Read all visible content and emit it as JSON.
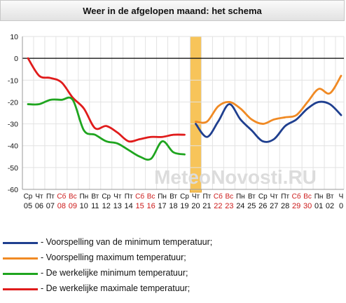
{
  "title": "Weer in de afgelopen maand: het schema",
  "watermark": "MeteoNovosti.RU",
  "colors": {
    "forecast_min": "#1f3f8f",
    "forecast_max": "#f08a24",
    "actual_min": "#1fa51f",
    "actual_max": "#e01b1b",
    "weekend_text": "#cc1a1a",
    "today_band": "#f7c45a"
  },
  "legend": [
    {
      "label": "- Voorspelling van de minimum temperatuur;",
      "color": "#1f3f8f"
    },
    {
      "label": "- Voorspelling maximum temperatuur;",
      "color": "#f08a24"
    },
    {
      "label": "- De werkelijke minimum temperatuur;",
      "color": "#1fa51f"
    },
    {
      "label": "- De werkelijke maximale temperatuur;",
      "color": "#e01b1b"
    }
  ],
  "chart_data": {
    "type": "line",
    "ylim": [
      -60,
      10
    ],
    "yticks": [
      10,
      0,
      -10,
      -20,
      -30,
      -40,
      -50,
      -60
    ],
    "grid": true,
    "highlight_day_index": 15,
    "days": [
      {
        "name": "Ср",
        "num": "05",
        "weekend": false
      },
      {
        "name": "Чт",
        "num": "06",
        "weekend": false
      },
      {
        "name": "Пт",
        "num": "07",
        "weekend": false
      },
      {
        "name": "Сб",
        "num": "08",
        "weekend": true
      },
      {
        "name": "Вс",
        "num": "09",
        "weekend": true
      },
      {
        "name": "Пн",
        "num": "10",
        "weekend": false
      },
      {
        "name": "Вт",
        "num": "11",
        "weekend": false
      },
      {
        "name": "Ср",
        "num": "12",
        "weekend": false
      },
      {
        "name": "Чт",
        "num": "13",
        "weekend": false
      },
      {
        "name": "Пт",
        "num": "14",
        "weekend": false
      },
      {
        "name": "Сб",
        "num": "15",
        "weekend": true
      },
      {
        "name": "Вс",
        "num": "16",
        "weekend": true
      },
      {
        "name": "Пн",
        "num": "17",
        "weekend": false
      },
      {
        "name": "Вт",
        "num": "18",
        "weekend": false
      },
      {
        "name": "Ср",
        "num": "19",
        "weekend": false
      },
      {
        "name": "Чт",
        "num": "20",
        "weekend": false
      },
      {
        "name": "Пт",
        "num": "21",
        "weekend": false
      },
      {
        "name": "Сб",
        "num": "22",
        "weekend": true
      },
      {
        "name": "Вс",
        "num": "23",
        "weekend": true
      },
      {
        "name": "Пн",
        "num": "24",
        "weekend": false
      },
      {
        "name": "Вт",
        "num": "25",
        "weekend": false
      },
      {
        "name": "Ср",
        "num": "26",
        "weekend": false
      },
      {
        "name": "Чт",
        "num": "27",
        "weekend": false
      },
      {
        "name": "Пт",
        "num": "28",
        "weekend": false
      },
      {
        "name": "Сб",
        "num": "29",
        "weekend": true
      },
      {
        "name": "Вс",
        "num": "30",
        "weekend": true
      },
      {
        "name": "Пн",
        "num": "01",
        "weekend": false
      },
      {
        "name": "Вт",
        "num": "02",
        "weekend": false
      },
      {
        "name": "Ч",
        "num": "0",
        "weekend": false
      }
    ],
    "series": [
      {
        "key": "actual_max",
        "color": "#e01b1b",
        "values": [
          0,
          -8,
          -9,
          -11,
          -18,
          -23,
          -32,
          -31,
          -34,
          -38,
          -37,
          -36,
          -36,
          -35,
          -35,
          null,
          null,
          null,
          null,
          null,
          null,
          null,
          null,
          null,
          null,
          null,
          null,
          null,
          null
        ]
      },
      {
        "key": "actual_min",
        "color": "#1fa51f",
        "values": [
          -21,
          -21,
          -19,
          -19,
          -19,
          -33,
          -35,
          -38,
          -39,
          -42,
          -45,
          -46,
          -38,
          -43,
          -44,
          null,
          null,
          null,
          null,
          null,
          null,
          null,
          null,
          null,
          null,
          null,
          null,
          null,
          null
        ]
      },
      {
        "key": "forecast_max",
        "color": "#f08a24",
        "values": [
          null,
          null,
          null,
          null,
          null,
          null,
          null,
          null,
          null,
          null,
          null,
          null,
          null,
          null,
          null,
          -29,
          -29,
          -22,
          -20,
          -23,
          -28,
          -30,
          -28,
          -27,
          -26,
          -20,
          -14,
          -16,
          -8
        ]
      },
      {
        "key": "forecast_min",
        "color": "#1f3f8f",
        "values": [
          null,
          null,
          null,
          null,
          null,
          null,
          null,
          null,
          null,
          null,
          null,
          null,
          null,
          null,
          null,
          -30,
          -36,
          -29,
          -21,
          -28,
          -33,
          -38,
          -37,
          -31,
          -28,
          -23,
          -20,
          -21,
          -26
        ]
      }
    ]
  }
}
